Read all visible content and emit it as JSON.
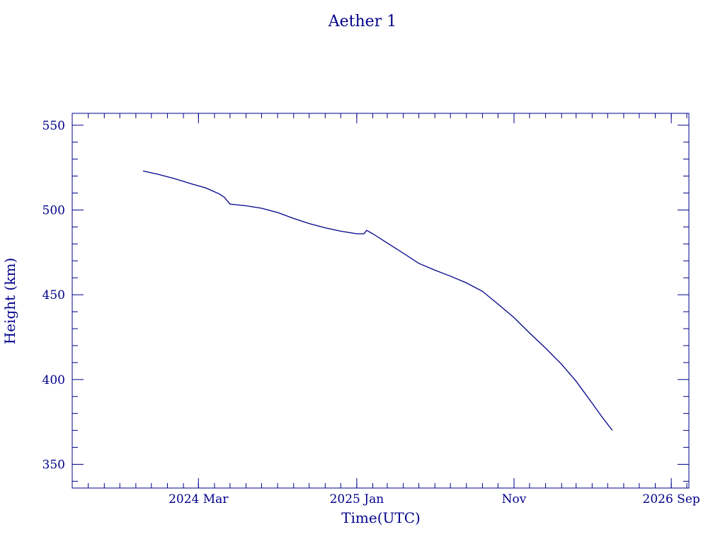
{
  "chart_data": {
    "type": "line",
    "title": "Aether 1",
    "xlabel": "Time(UTC)",
    "ylabel": "Height (km)",
    "ylim": [
      336,
      557
    ],
    "xlim": [
      "2023-07-01",
      "2026-10-05"
    ],
    "grid": false,
    "x_ticks": [
      {
        "date": "2024-03-01",
        "label": "2024 Mar"
      },
      {
        "date": "2025-01-01",
        "label": "2025 Jan"
      },
      {
        "date": "2025-11-01",
        "label": "Nov"
      },
      {
        "date": "2026-09-01",
        "label": "2026 Sep"
      }
    ],
    "y_ticks": [
      350,
      400,
      450,
      500,
      550
    ],
    "color": "#00008b",
    "series": [
      {
        "x": [
          "2023-11-15",
          "2023-12-15",
          "2024-01-15",
          "2024-02-15",
          "2024-03-15",
          "2024-04-10",
          "2024-04-20",
          "2024-05-01",
          "2024-06-01",
          "2024-07-01",
          "2024-08-01",
          "2024-09-01",
          "2024-10-01",
          "2024-11-01",
          "2024-12-01",
          "2025-01-01",
          "2025-01-15",
          "2025-01-20",
          "2025-02-01",
          "2025-03-01",
          "2025-04-01",
          "2025-05-01",
          "2025-06-01",
          "2025-07-01",
          "2025-08-01",
          "2025-09-01",
          "2025-10-01",
          "2025-11-01",
          "2025-12-01",
          "2026-01-01",
          "2026-02-01",
          "2026-03-01",
          "2026-04-01",
          "2026-04-20",
          "2026-05-10"
        ],
        "y": [
          523,
          521,
          518.5,
          515.5,
          513,
          509.5,
          507.5,
          503.5,
          502.5,
          501,
          498.5,
          495,
          492,
          489.5,
          487.5,
          486,
          486,
          488,
          486,
          480.5,
          474.5,
          468.5,
          464.5,
          461,
          457,
          452,
          444.5,
          436.5,
          427.5,
          418.5,
          409,
          399,
          386,
          378,
          370
        ]
      }
    ]
  }
}
